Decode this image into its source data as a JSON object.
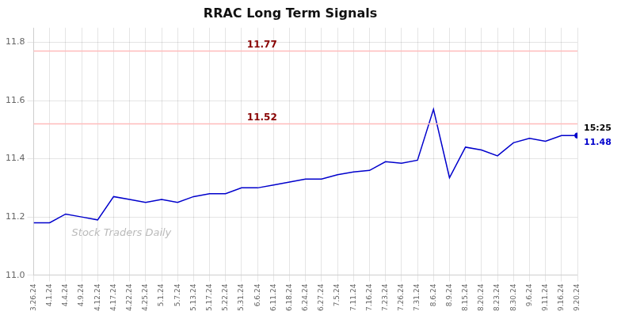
{
  "chart_data": {
    "type": "line",
    "title": "RRAC Long Term Signals",
    "categories": [
      "3.26.24",
      "4.1.24",
      "4.4.24",
      "4.9.24",
      "4.12.24",
      "4.17.24",
      "4.22.24",
      "4.25.24",
      "5.1.24",
      "5.7.24",
      "5.13.24",
      "5.17.24",
      "5.22.24",
      "5.31.24",
      "6.6.24",
      "6.11.24",
      "6.18.24",
      "6.24.24",
      "6.27.24",
      "7.5.24",
      "7.11.24",
      "7.16.24",
      "7.23.24",
      "7.26.24",
      "7.31.24",
      "8.6.24",
      "8.9.24",
      "8.15.24",
      "8.20.24",
      "8.23.24",
      "8.30.24",
      "9.6.24",
      "9.11.24",
      "9.16.24",
      "9.20.24"
    ],
    "values": [
      11.18,
      11.18,
      11.21,
      11.2,
      11.19,
      11.27,
      11.26,
      11.25,
      11.26,
      11.25,
      11.27,
      11.28,
      11.28,
      11.3,
      11.3,
      11.31,
      11.32,
      11.33,
      11.33,
      11.345,
      11.355,
      11.36,
      11.39,
      11.385,
      11.395,
      11.57,
      11.335,
      11.44,
      11.43,
      11.41,
      11.455,
      11.47,
      11.46,
      11.48,
      11.48
    ],
    "color": "#0000cc",
    "ylim": [
      11.0,
      11.85
    ],
    "yticks": [
      {
        "value": 11.0,
        "label": "11.0"
      },
      11.2,
      11.4,
      11.6,
      11.8
    ],
    "grid": true,
    "hlines": [
      {
        "value": 11.77,
        "label": "11.77",
        "color": "#ffbbbb",
        "label_color": "#880000"
      },
      {
        "value": 11.52,
        "label": "11.52",
        "color": "#ffbbbb",
        "label_color": "#880000"
      }
    ],
    "annotations": [
      {
        "text": "15:25",
        "x": "9.20.24",
        "y": 11.48,
        "color": "#000000"
      },
      {
        "text": "11.48",
        "x": "9.20.24",
        "y": 11.48,
        "color": "#0000cc"
      },
      {
        "text": "Stock Traders Daily",
        "color": "#bbbbbb"
      }
    ]
  }
}
